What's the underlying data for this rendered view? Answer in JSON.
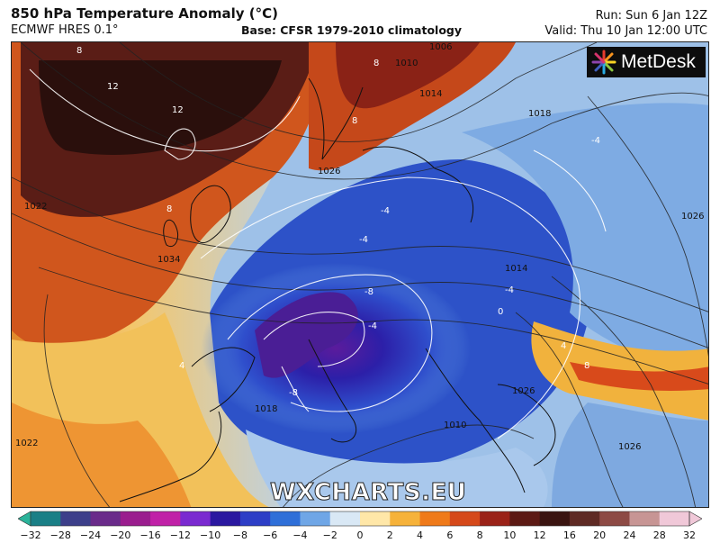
{
  "header": {
    "title": "850 hPa Temperature Anomaly (°C)",
    "model": "ECMWF HRES 0.1°",
    "base": "Base: CFSR 1979-2010 climatology",
    "run": "Run: Sun 6 Jan 12Z",
    "valid": "Valid: Thu 10 Jan 12:00 UTC"
  },
  "logo": {
    "text": "MetDesk"
  },
  "watermark": "WXCHARTS.EU",
  "map": {
    "isobar_labels": [
      "1006",
      "1010",
      "1014",
      "1018",
      "1022",
      "1026",
      "1034",
      "1014",
      "1026",
      "1018",
      "1010",
      "1022",
      "1026",
      "1026"
    ],
    "anomaly_labels": [
      "8",
      "12",
      "12",
      "8",
      "8",
      "8",
      "4",
      "-4",
      "-4",
      "-4",
      "-8",
      "-8",
      "-4",
      "4",
      "8",
      "-4",
      "0"
    ]
  },
  "colorbar": {
    "ticks": [
      "−32",
      "−28",
      "−24",
      "−20",
      "−16",
      "−12",
      "−10",
      "−8",
      "−6",
      "−4",
      "−2",
      "0",
      "2",
      "4",
      "6",
      "8",
      "10",
      "12",
      "16",
      "20",
      "24",
      "28",
      "32"
    ],
    "colors": [
      "#2bb39a",
      "#1a7f86",
      "#3d3f8a",
      "#6a2b8a",
      "#9a1d8e",
      "#c021a7",
      "#7a2ad0",
      "#2a18a0",
      "#2d3ec6",
      "#2f6fd8",
      "#6fa6e6",
      "#d9e8f5",
      "#ffe7a8",
      "#f6b23a",
      "#ef7a1a",
      "#d5491a",
      "#9a2218",
      "#5c1a14",
      "#3a1410",
      "#5e2a24",
      "#8d4a44",
      "#c79594",
      "#f0c8d8"
    ]
  }
}
